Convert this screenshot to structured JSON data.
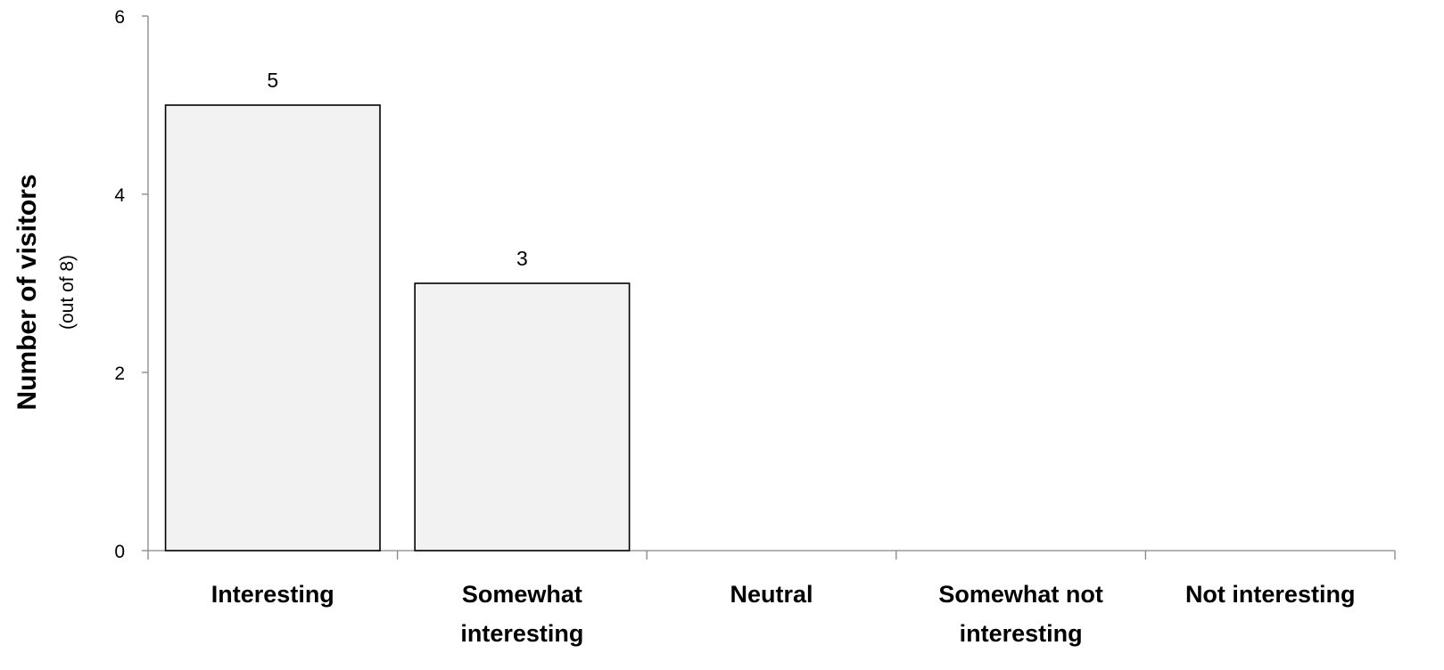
{
  "chart_data": {
    "type": "bar",
    "categories": [
      [
        "Interesting"
      ],
      [
        "Somewhat",
        "interesting"
      ],
      [
        "Neutral"
      ],
      [
        "Somewhat not",
        "interesting"
      ],
      [
        "Not interesting"
      ]
    ],
    "values": [
      5,
      3,
      null,
      null,
      null
    ],
    "data_labels": [
      "5",
      "3",
      "",
      "",
      ""
    ],
    "ylabel": "Number of visitors",
    "ylabel_sub": "(out of 8)",
    "ylim": [
      0,
      6
    ],
    "yticks": [
      0,
      2,
      4,
      6
    ],
    "grid": false,
    "legend": "none",
    "colors": {
      "bar_fill": "#f2f2f2",
      "bar_stroke": "#000000",
      "axis": "#868686"
    }
  }
}
